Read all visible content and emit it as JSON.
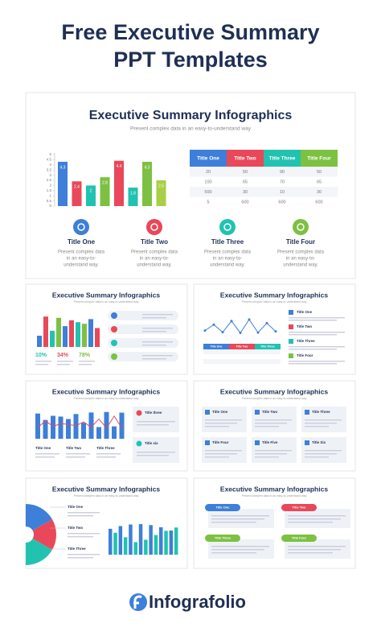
{
  "header": {
    "title_lines": [
      "Free Executive Summary",
      "PPT Templates"
    ]
  },
  "main_slide": {
    "title": "Executive Summary Infographics",
    "subtitle": "Present complex data in an easy-to-understand way",
    "chart": {
      "type": "bar",
      "values": [
        4.3,
        2.4,
        2,
        2.8,
        4.4,
        1.8,
        4.3,
        2.5
      ],
      "colors": [
        "#3d7fd9",
        "#e8485a",
        "#22c2b0",
        "#7cc142",
        "#e8485a",
        "#22c2b0",
        "#7cc142",
        "#a8cf45"
      ],
      "ylim": [
        0,
        5
      ],
      "yticks": [
        0,
        0.5,
        1,
        1.5,
        2,
        2.5,
        3,
        3.5,
        4,
        4.5,
        5
      ]
    },
    "table": {
      "header": [
        "Title One",
        "Title Two",
        "Title Three",
        "Title Four"
      ],
      "header_colors": [
        "#3d7fd9",
        "#e8485a",
        "#22c2b0",
        "#7cc142"
      ],
      "rows": [
        [
          20,
          50,
          90,
          50
        ],
        [
          100,
          65,
          70,
          65
        ],
        [
          500,
          30,
          10,
          30
        ],
        [
          5,
          600,
          600,
          600
        ]
      ]
    },
    "items": [
      {
        "title": "Title One",
        "color": "#3d7fd9",
        "text": [
          "Present complex data",
          "in an easy-to-",
          "understand way."
        ]
      },
      {
        "title": "Title Two",
        "color": "#e8485a",
        "text": [
          "Present complex data",
          "in an easy-to-",
          "understand way."
        ]
      },
      {
        "title": "Title Three",
        "color": "#22c2b0",
        "text": [
          "Present complex data",
          "in an easy-to-",
          "understand way."
        ]
      },
      {
        "title": "Title Four",
        "color": "#7cc142",
        "text": [
          "Present complex data",
          "in an easy-to-",
          "understand way."
        ]
      }
    ]
  },
  "thumbnails": [
    {
      "title": "Executive Summary Infographics",
      "subtitle": "Present complex data in an easy-to-understand way",
      "labels": [
        "10%",
        "34%",
        "78%"
      ]
    },
    {
      "title": "Executive Summary Infographics",
      "subtitle": "Present complex data in an easy-to-understand way",
      "labels": [
        "Title One",
        "Title Two",
        "Title Three",
        "Title One",
        "Title Two",
        "Title Three",
        "Title Four"
      ]
    },
    {
      "title": "Executive Summary Infographics",
      "subtitle": "Present complex data in an easy-to-understand way",
      "labels": [
        "Title One",
        "Title Two",
        "Title Three",
        "Title three",
        "Title six"
      ]
    },
    {
      "title": "Executive Summary Infographics",
      "subtitle": "Present complex data in an easy-to-understand way",
      "labels": [
        "Title One",
        "Title Two",
        "Title Three",
        "Title Four",
        "Title Five",
        "Title Six"
      ]
    },
    {
      "title": "Executive Summary Infographics",
      "subtitle": "Present complex data in an easy-to-understand way",
      "labels": [
        "Title One",
        "Title Two",
        "Title Three"
      ]
    },
    {
      "title": "Executive Summary Infographics",
      "subtitle": "Present complex data in an easy-to-understand way",
      "labels": [
        "Title One",
        "Title Two",
        "Title Three",
        "Title Four"
      ]
    }
  ],
  "footer": {
    "brand": "Infografolio"
  }
}
